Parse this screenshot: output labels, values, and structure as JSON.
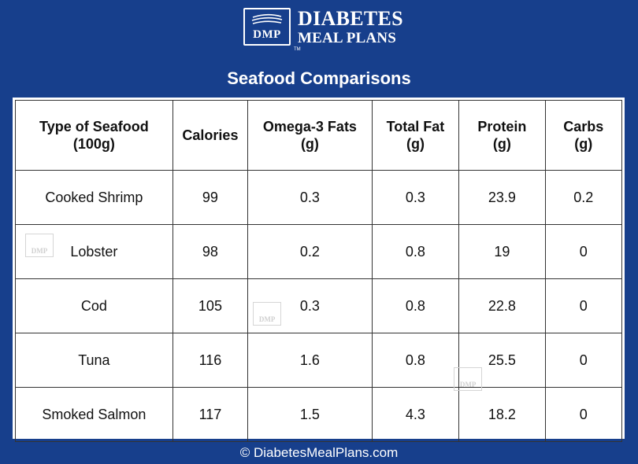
{
  "brand": {
    "logo_mark": "DMP",
    "line1": "DIABETES",
    "line2": "MEAL PLANS",
    "trademark": "TM"
  },
  "title": "Seafood Comparisons",
  "table": {
    "headers": [
      [
        "Type of Seafood",
        "(100g)"
      ],
      [
        "Calories",
        ""
      ],
      [
        "Omega-3 Fats",
        "(g)"
      ],
      [
        "Total Fat",
        "(g)"
      ],
      [
        "Protein",
        "(g)"
      ],
      [
        "Carbs",
        "(g)"
      ]
    ],
    "rows": [
      [
        "Cooked Shrimp",
        "99",
        "0.3",
        "0.3",
        "23.9",
        "0.2"
      ],
      [
        "Lobster",
        "98",
        "0.2",
        "0.8",
        "19",
        "0"
      ],
      [
        "Cod",
        "105",
        "0.3",
        "0.8",
        "22.8",
        "0"
      ],
      [
        "Tuna",
        "116",
        "1.6",
        "0.8",
        "25.5",
        "0"
      ],
      [
        "Smoked Salmon",
        "117",
        "1.5",
        "4.3",
        "18.2",
        "0"
      ]
    ]
  },
  "watermark": "DMP",
  "footer": "© DiabetesMealPlans.com",
  "colors": {
    "background": "#173f8c",
    "table": "#ffffff",
    "border": "#333333"
  }
}
